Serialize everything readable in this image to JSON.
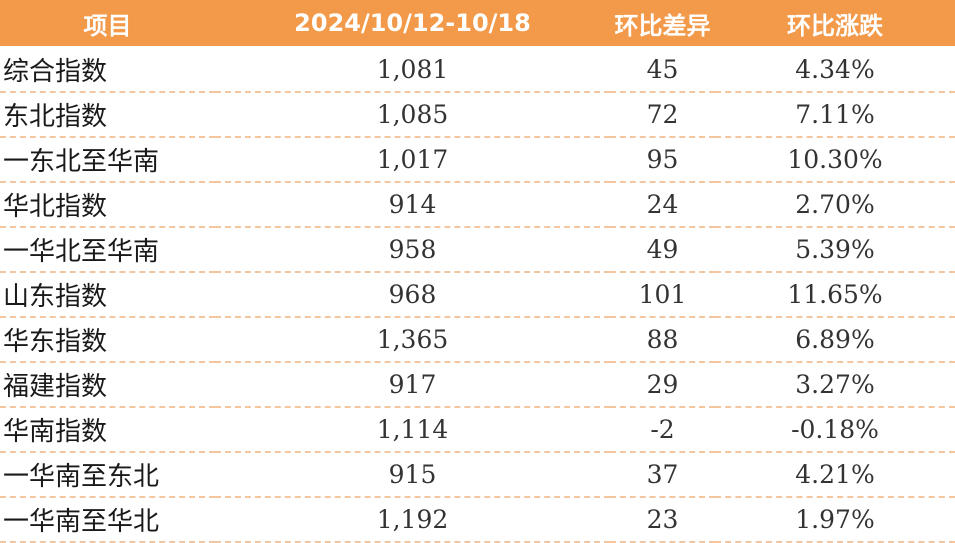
{
  "table": {
    "headers": [
      "项目",
      "2024/10/12-10/18",
      "环比差异",
      "环比涨跌"
    ],
    "rows": [
      [
        "综合指数",
        "1,081",
        "45",
        "4.34%"
      ],
      [
        "东北指数",
        "1,085",
        "72",
        "7.11%"
      ],
      [
        "一东北至华南",
        "1,017",
        "95",
        "10.30%"
      ],
      [
        "华北指数",
        "914",
        "24",
        "2.70%"
      ],
      [
        "一华北至华南",
        "958",
        "49",
        "5.39%"
      ],
      [
        "山东指数",
        "968",
        "101",
        "11.65%"
      ],
      [
        "华东指数",
        "1,365",
        "88",
        "6.89%"
      ],
      [
        "福建指数",
        "917",
        "29",
        "3.27%"
      ],
      [
        "华南指数",
        "1,114",
        "-2",
        "-0.18%"
      ],
      [
        "一华南至东北",
        "915",
        "37",
        "4.21%"
      ],
      [
        "一华南至华北",
        "1,192",
        "23",
        "1.97%"
      ]
    ]
  },
  "colors": {
    "header_bg": "#f2994a",
    "header_text": "#ffffff",
    "row_divider": "#f3c6a0"
  }
}
